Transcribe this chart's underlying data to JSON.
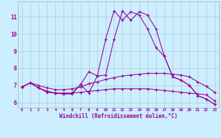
{
  "xlabel": "Windchill (Refroidissement éolien,°C)",
  "background_color": "#cceeff",
  "line_color": "#990099",
  "grid_color": "#aacccc",
  "x_values": [
    0,
    1,
    2,
    3,
    4,
    5,
    6,
    7,
    8,
    9,
    10,
    11,
    12,
    13,
    14,
    15,
    16,
    17,
    18,
    19,
    20,
    21,
    22,
    23
  ],
  "series1": [
    6.9,
    7.15,
    6.85,
    6.6,
    6.55,
    6.5,
    6.55,
    7.05,
    7.8,
    7.55,
    9.7,
    11.35,
    10.8,
    11.3,
    11.1,
    10.3,
    9.2,
    8.7,
    7.5,
    7.3,
    7.0,
    6.4,
    6.2,
    5.9
  ],
  "series2": [
    6.9,
    7.15,
    7.0,
    6.85,
    6.75,
    6.75,
    6.8,
    6.9,
    7.1,
    7.2,
    7.35,
    7.45,
    7.55,
    7.6,
    7.65,
    7.7,
    7.7,
    7.7,
    7.65,
    7.6,
    7.5,
    7.2,
    6.95,
    6.6
  ],
  "series3": [
    6.9,
    7.15,
    6.85,
    6.65,
    6.55,
    6.55,
    6.55,
    6.6,
    6.65,
    6.7,
    6.75,
    6.8,
    6.8,
    6.8,
    6.8,
    6.8,
    6.75,
    6.7,
    6.65,
    6.6,
    6.55,
    6.5,
    6.45,
    6.1
  ],
  "series4": [
    6.9,
    7.15,
    6.85,
    6.65,
    6.55,
    6.5,
    6.5,
    7.05,
    6.55,
    7.55,
    7.6,
    9.7,
    11.35,
    10.8,
    11.3,
    11.1,
    10.3,
    8.7,
    7.5,
    7.3,
    7.0,
    6.4,
    6.2,
    5.9
  ],
  "ylim": [
    5.7,
    11.9
  ],
  "xlim": [
    -0.5,
    23.5
  ],
  "yticks": [
    6,
    7,
    8,
    9,
    10,
    11
  ],
  "xticks": [
    0,
    1,
    2,
    3,
    4,
    5,
    6,
    7,
    8,
    9,
    10,
    11,
    12,
    13,
    14,
    15,
    16,
    17,
    18,
    19,
    20,
    21,
    22,
    23
  ]
}
